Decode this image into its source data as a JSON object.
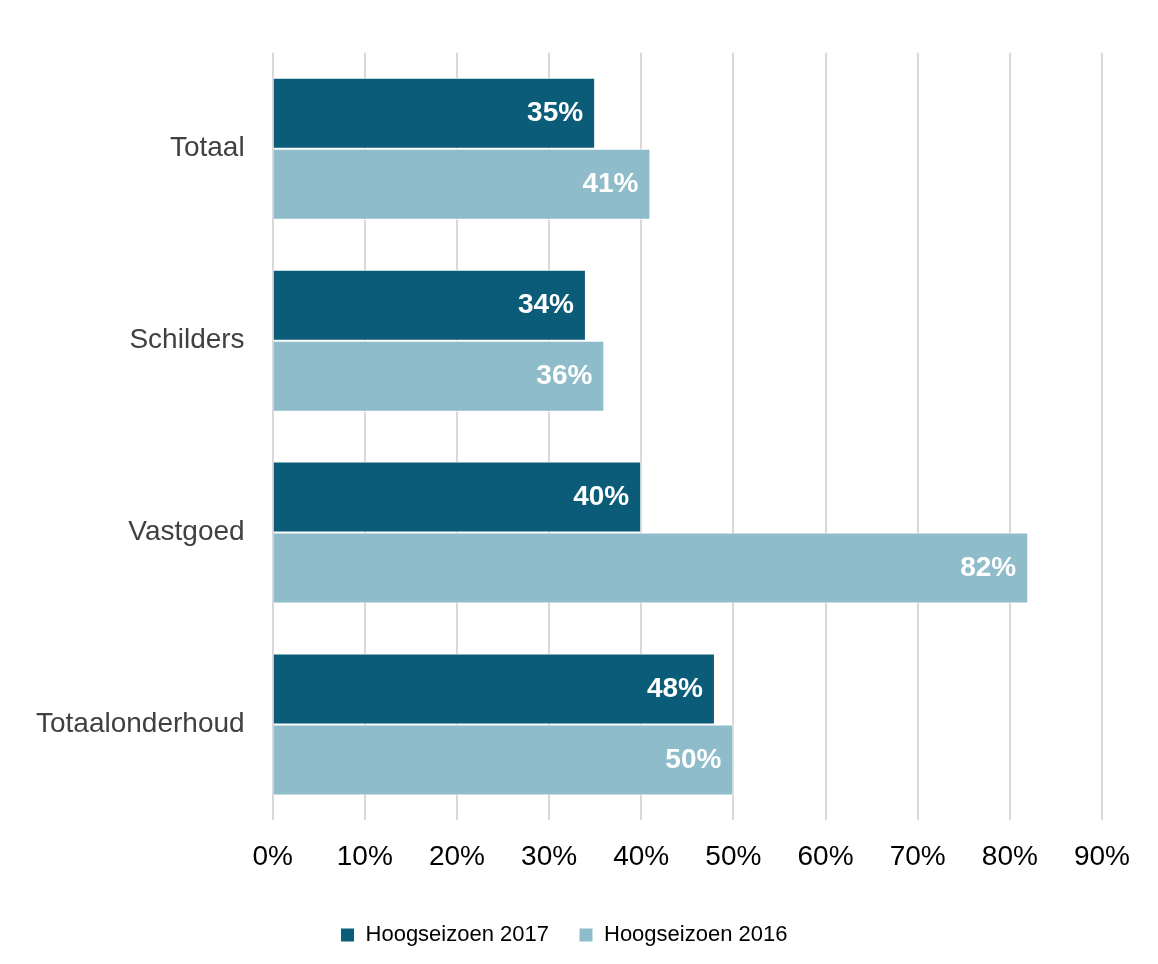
{
  "chart_data": {
    "type": "bar",
    "orientation": "horizontal",
    "categories": [
      "Totaal",
      "Schilders",
      "Vastgoed",
      "Totaalonderhoud"
    ],
    "series": [
      {
        "name": "Hoogseizoen 2017",
        "color": "#0b5c78",
        "values": [
          35,
          34,
          40,
          48
        ],
        "value_labels": [
          "35%",
          "34%",
          "40%",
          "48%"
        ]
      },
      {
        "name": "Hoogseizoen 2016",
        "color": "#8fbcca",
        "values": [
          41,
          36,
          82,
          50
        ],
        "value_labels": [
          "41%",
          "36%",
          "82%",
          "50%"
        ]
      }
    ],
    "xlim": [
      0,
      90
    ],
    "xticks": [
      {
        "value": 0,
        "label": "0%"
      },
      {
        "value": 10,
        "label": "10%"
      },
      {
        "value": 20,
        "label": "20%"
      },
      {
        "value": 30,
        "label": "30%"
      },
      {
        "value": 40,
        "label": "40%"
      },
      {
        "value": 50,
        "label": "50%"
      },
      {
        "value": 60,
        "label": "60%"
      },
      {
        "value": 70,
        "label": "70%"
      },
      {
        "value": 80,
        "label": "80%"
      },
      {
        "value": 90,
        "label": "90%"
      }
    ],
    "grid": "x",
    "legend": "bottom"
  }
}
